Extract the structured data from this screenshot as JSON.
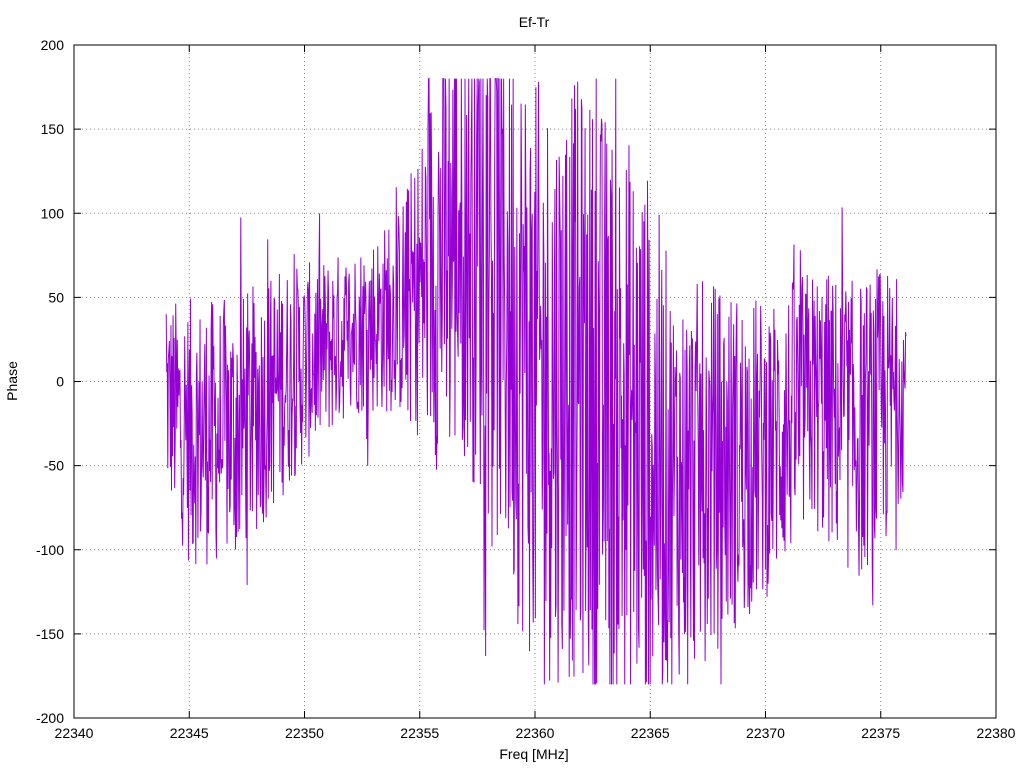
{
  "chart_data": {
    "type": "line",
    "title": "Ef-Tr",
    "xlabel": "Freq [MHz]",
    "ylabel": "Phase",
    "xlim": [
      22340,
      22380
    ],
    "ylim": [
      -200,
      200
    ],
    "x_ticks": [
      22340,
      22345,
      22350,
      22355,
      22360,
      22365,
      22370,
      22375,
      22380
    ],
    "y_ticks": [
      -200,
      -150,
      -100,
      -50,
      0,
      50,
      100,
      150,
      200
    ],
    "grid": true,
    "legend": "none",
    "series": [
      {
        "color": "#9400d3",
        "x_start": 22344.0,
        "x_end": 22376.1,
        "points": 1400,
        "envelope_x": [
          22344.0,
          22345,
          22347,
          22349,
          22350,
          22352,
          22354,
          22355,
          22356,
          22357,
          22358,
          22360,
          22362,
          22364,
          22365,
          22366,
          22368,
          22370,
          22372,
          22374,
          22375,
          22376.1
        ],
        "envelope_center": [
          -10,
          -30,
          -30,
          0,
          10,
          30,
          40,
          55,
          80,
          100,
          90,
          0,
          0,
          -30,
          -40,
          -60,
          -50,
          -40,
          -10,
          -30,
          -20,
          0
        ],
        "envelope_spread": [
          60,
          80,
          80,
          70,
          60,
          50,
          60,
          90,
          140,
          150,
          175,
          180,
          180,
          180,
          165,
          120,
          110,
          90,
          80,
          90,
          90,
          60
        ]
      }
    ]
  }
}
